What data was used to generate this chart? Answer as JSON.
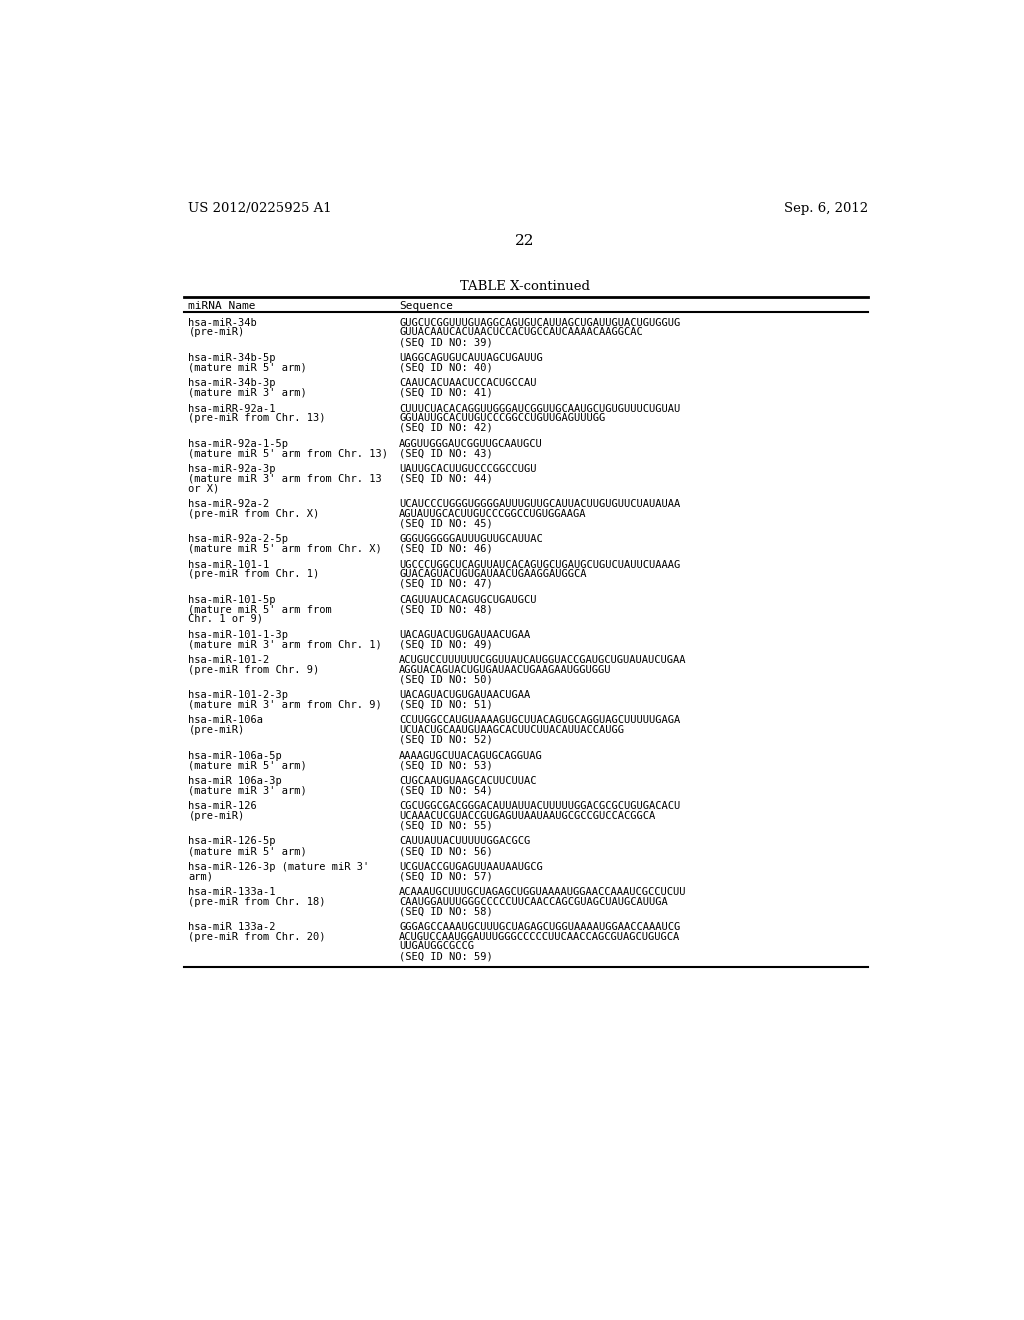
{
  "header_left": "US 2012/0225925 A1",
  "header_right": "Sep. 6, 2012",
  "page_number": "22",
  "table_title": "TABLE X-continued",
  "col1_header": "miRNA Name",
  "col2_header": "Sequence",
  "background_color": "#ffffff",
  "text_color": "#000000",
  "rows": [
    {
      "name": [
        "hsa-miR-34b",
        "(pre-miR)"
      ],
      "seq": [
        "GUGCUCGGUUUGUAGGCAGUGUCAUUAGCUGAUUGUACUGUGGUG",
        "GUUACAAUCACUAACUCCACUGCCAUCAAAACAAGGCAC",
        "(SEQ ID NO: 39)"
      ]
    },
    {
      "name": [
        "hsa-miR-34b-5p",
        "(mature miR 5' arm)"
      ],
      "seq": [
        "UAGGCAGUGUCAUUAGCUGAUUG",
        "(SEQ ID NO: 40)"
      ]
    },
    {
      "name": [
        "hsa-miR-34b-3p",
        "(mature miR 3' arm)"
      ],
      "seq": [
        "CAAUCACUAACUCCACUGCCAU",
        "(SEQ ID NO: 41)"
      ]
    },
    {
      "name": [
        "hsa-miRR-92a-1",
        "(pre-miR from Chr. 13)"
      ],
      "seq": [
        "CUUUCUACACAGGUUGGGAUCGGUUGCAAUGCUGUGUUUCUGUAU",
        "GGUAUUGCACUUGUCCCGGCCUGUUGAGUUUGG",
        "(SEQ ID NO: 42)"
      ]
    },
    {
      "name": [
        "hsa-miR-92a-1-5p",
        "(mature miR 5' arm from Chr. 13)"
      ],
      "seq": [
        "AGGUUGGGAUCGGUUGCAAUGCU",
        "(SEQ ID NO: 43)"
      ]
    },
    {
      "name": [
        "hsa-miR-92a-3p",
        "(mature miR 3' arm from Chr. 13",
        "or X)"
      ],
      "seq": [
        "UAUUGCACUUGUCCCGGCCUGU",
        "(SEQ ID NO: 44)"
      ]
    },
    {
      "name": [
        "hsa-miR-92a-2",
        "(pre-miR from Chr. X)"
      ],
      "seq": [
        "UCAUCCCUGGGUGGGGAUUUGUUGCAUUACUUGUGUUCUAUAUAA",
        "AGUAUUGCACUUGUCCCGGCCUGUGGAAGA",
        "(SEQ ID NO: 45)"
      ]
    },
    {
      "name": [
        "hsa-miR-92a-2-5p",
        "(mature miR 5' arm from Chr. X)"
      ],
      "seq": [
        "GGGUGGGGGAUUUGUUGCAUUAC",
        "(SEQ ID NO: 46)"
      ]
    },
    {
      "name": [
        "hsa-miR-101-1",
        "(pre-miR from Chr. 1)"
      ],
      "seq": [
        "UGCCCUGGCUCAGUUAUCACAGUGCUGAUGCUGUCUAUUCUAAAG",
        "GUACAGUACUGUGAUAACUGAAGGAUGGCA",
        "(SEQ ID NO: 47)"
      ]
    },
    {
      "name": [
        "hsa-miR-101-5p",
        "(mature miR 5' arm from",
        "Chr. 1 or 9)"
      ],
      "seq": [
        "CAGUUAUCACAGUGCUGAUGCU",
        "(SEQ ID NO: 48)"
      ]
    },
    {
      "name": [
        "hsa-miR-101-1-3p",
        "(mature miR 3' arm from Chr. 1)"
      ],
      "seq": [
        "UACAGUACUGUGAUAACUGAA",
        "(SEQ ID NO: 49)"
      ]
    },
    {
      "name": [
        "hsa-miR-101-2",
        "(pre-miR from Chr. 9)"
      ],
      "seq": [
        "ACUGUCCUUUUUUCGGUUAUCAUGGUACCGAUGCUGUAUAUCUGAA",
        "AGGUACAGUACUGUGAUAACUGAAGAAUGGUGGU",
        "(SEQ ID NO: 50)"
      ]
    },
    {
      "name": [
        "hsa-miR-101-2-3p",
        "(mature miR 3' arm from Chr. 9)"
      ],
      "seq": [
        "UACAGUACUGUGAUAACUGAA",
        "(SEQ ID NO: 51)"
      ]
    },
    {
      "name": [
        "hsa-miR-106a",
        "(pre-miR)"
      ],
      "seq": [
        "CCUUGGCCAUGUAAAAGUGCUUACAGUGCAGGUAGCUUUUUGAGA",
        "UCUACUGCAAUGUAAGCACUUCUUACAUUACCAUGG",
        "(SEQ ID NO: 52)"
      ]
    },
    {
      "name": [
        "hsa-miR-106a-5p",
        "(mature miR 5' arm)"
      ],
      "seq": [
        "AAAAGUGCUUACAGUGCAGGUAG",
        "(SEQ ID NO: 53)"
      ]
    },
    {
      "name": [
        "hsa-miR 106a-3p",
        "(mature miR 3' arm)"
      ],
      "seq": [
        "CUGCAAUGUAAGCACUUCUUAC",
        "(SEQ ID NO: 54)"
      ]
    },
    {
      "name": [
        "hsa-miR-126",
        "(pre-miR)"
      ],
      "seq": [
        "CGCUGGCGACGGGACAUUAUUACUUUUUGGACGCGCUGUGACACU",
        "UCAAACUCGUACCGUGAGUUAAUAAUGCGCCGUCCACGGCA",
        "(SEQ ID NO: 55)"
      ]
    },
    {
      "name": [
        "hsa-miR-126-5p",
        "(mature miR 5' arm)"
      ],
      "seq": [
        "CAUUAUUACUUUUUGGACGCG",
        "(SEQ ID NO: 56)"
      ]
    },
    {
      "name": [
        "hsa-miR-126-3p (mature miR 3'",
        "arm)"
      ],
      "seq": [
        "UCGUACCGUGAGUUAAUAAUGCG",
        "(SEQ ID NO: 57)"
      ]
    },
    {
      "name": [
        "hsa-miR-133a-1",
        "(pre-miR from Chr. 18)"
      ],
      "seq": [
        "ACAAAUGCUUUGCUAGAGCUGGUAAAAUGGAACCAAAUCGCCUCUU",
        "CAAUGGAUUUGGGCCCCCUUCAACCAGCGUAGCUAUGCAUUGA",
        "(SEQ ID NO: 58)"
      ]
    },
    {
      "name": [
        "hsa-miR 133a-2",
        "(pre-miR from Chr. 20)"
      ],
      "seq": [
        "GGGAGCCAAAUGCUUUGCUAGAGCUGGUAAAAUGGAACCAAAUCG",
        "ACUGUCCAAUGGAUUUGGGCCCCCUUCAACCAGCGUAGCUGUGCA",
        "UUGAUGGCGCCG",
        "(SEQ ID NO: 59)"
      ]
    }
  ]
}
